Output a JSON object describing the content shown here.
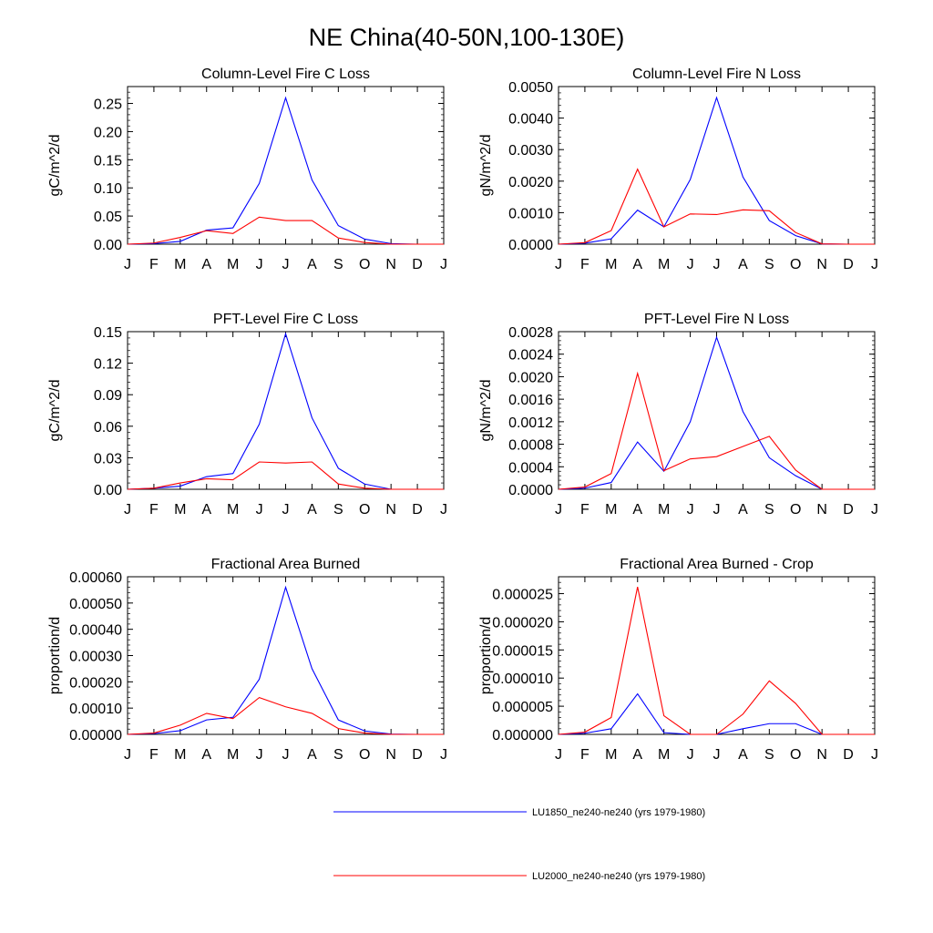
{
  "figure": {
    "title": "NE China(40-50N,100-130E)"
  },
  "legend": [
    {
      "name": "LU1850_ne240-ne240 (yrs 1979-1980)",
      "color": "#0000ff"
    },
    {
      "name": "LU2000_ne240-ne240 (yrs 1979-1980)",
      "color": "#ff0000"
    }
  ],
  "chart_data": [
    {
      "type": "line",
      "title": "Column-Level Fire C Loss",
      "ylabel": "gC/m^2/d",
      "xlabel": "",
      "categories": [
        "J",
        "F",
        "M",
        "A",
        "M",
        "J",
        "J",
        "A",
        "S",
        "O",
        "N",
        "D",
        "J"
      ],
      "ylim": [
        0,
        0.28
      ],
      "yticks": [
        "0.00",
        "0.05",
        "0.10",
        "0.15",
        "0.20",
        "0.25"
      ],
      "series": [
        {
          "name": "LU1850_ne240-ne240 (yrs 1979-1980)",
          "color": "#0000ff",
          "values": [
            0.0,
            0.001,
            0.005,
            0.025,
            0.029,
            0.108,
            0.26,
            0.114,
            0.033,
            0.009,
            0.001,
            0.0,
            0.0
          ]
        },
        {
          "name": "LU2000_ne240-ne240 (yrs 1979-1980)",
          "color": "#ff0000",
          "values": [
            0.0,
            0.002,
            0.012,
            0.024,
            0.019,
            0.048,
            0.042,
            0.042,
            0.011,
            0.003,
            0.0,
            0.0,
            0.0
          ]
        }
      ]
    },
    {
      "type": "line",
      "title": "Column-Level Fire N Loss",
      "ylabel": "gN/m^2/d",
      "xlabel": "",
      "categories": [
        "J",
        "F",
        "M",
        "A",
        "M",
        "J",
        "J",
        "A",
        "S",
        "O",
        "N",
        "D",
        "J"
      ],
      "ylim": [
        0,
        0.005
      ],
      "yticks": [
        "0.0000",
        "0.0010",
        "0.0020",
        "0.0030",
        "0.0040",
        "0.0050"
      ],
      "series": [
        {
          "name": "LU1850_ne240-ne240 (yrs 1979-1980)",
          "color": "#0000ff",
          "values": [
            0.0,
            3e-05,
            0.00017,
            0.00108,
            0.00055,
            0.00205,
            0.00465,
            0.00213,
            0.00075,
            0.00027,
            1e-05,
            0.0,
            0.0
          ]
        },
        {
          "name": "LU2000_ne240-ne240 (yrs 1979-1980)",
          "color": "#ff0000",
          "values": [
            0.0,
            5e-05,
            0.00043,
            0.00238,
            0.00055,
            0.00096,
            0.00094,
            0.00109,
            0.00106,
            0.00037,
            1e-05,
            0.0,
            0.0
          ]
        }
      ]
    },
    {
      "type": "line",
      "title": "PFT-Level Fire C Loss",
      "ylabel": "gC/m^2/d",
      "xlabel": "",
      "categories": [
        "J",
        "F",
        "M",
        "A",
        "M",
        "J",
        "J",
        "A",
        "S",
        "O",
        "N",
        "D",
        "J"
      ],
      "ylim": [
        0,
        0.15
      ],
      "yticks": [
        "0.00",
        "0.03",
        "0.06",
        "0.09",
        "0.12",
        "0.15"
      ],
      "series": [
        {
          "name": "LU1850_ne240-ne240 (yrs 1979-1980)",
          "color": "#0000ff",
          "values": [
            0.0,
            0.001,
            0.003,
            0.012,
            0.015,
            0.062,
            0.148,
            0.068,
            0.02,
            0.005,
            0.0,
            0.0,
            0.0
          ]
        },
        {
          "name": "LU2000_ne240-ne240 (yrs 1979-1980)",
          "color": "#ff0000",
          "values": [
            0.0,
            0.001,
            0.006,
            0.01,
            0.009,
            0.026,
            0.025,
            0.026,
            0.005,
            0.001,
            0.0,
            0.0,
            0.0
          ]
        }
      ]
    },
    {
      "type": "line",
      "title": "PFT-Level Fire N Loss",
      "ylabel": "gN/m^2/d",
      "xlabel": "",
      "categories": [
        "J",
        "F",
        "M",
        "A",
        "M",
        "J",
        "J",
        "A",
        "S",
        "O",
        "N",
        "D",
        "J"
      ],
      "ylim": [
        0,
        0.0028
      ],
      "yticks": [
        "0.0000",
        "0.0004",
        "0.0008",
        "0.0012",
        "0.0016",
        "0.0020",
        "0.0024",
        "0.0028"
      ],
      "series": [
        {
          "name": "LU1850_ne240-ne240 (yrs 1979-1980)",
          "color": "#0000ff",
          "values": [
            0.0,
            2e-05,
            0.00012,
            0.00084,
            0.00032,
            0.0012,
            0.0027,
            0.00138,
            0.00056,
            0.00024,
            0.0,
            0.0,
            0.0
          ]
        },
        {
          "name": "LU2000_ne240-ne240 (yrs 1979-1980)",
          "color": "#ff0000",
          "values": [
            0.0,
            4e-05,
            0.00028,
            0.00206,
            0.00033,
            0.00054,
            0.00058,
            0.00076,
            0.00094,
            0.00034,
            0.0,
            0.0,
            0.0
          ]
        }
      ]
    },
    {
      "type": "line",
      "title": "Fractional Area Burned",
      "ylabel": "proportion/d",
      "xlabel": "",
      "categories": [
        "J",
        "F",
        "M",
        "A",
        "M",
        "J",
        "J",
        "A",
        "S",
        "O",
        "N",
        "D",
        "J"
      ],
      "ylim": [
        0,
        0.0006
      ],
      "yticks": [
        "0.00000",
        "0.00010",
        "0.00020",
        "0.00030",
        "0.00040",
        "0.00050",
        "0.00060"
      ],
      "series": [
        {
          "name": "LU1850_ne240-ne240 (yrs 1979-1980)",
          "color": "#0000ff",
          "values": [
            0.0,
            3e-06,
            1.4e-05,
            5.5e-05,
            6.5e-05,
            0.00021,
            0.00056,
            0.00025,
            5.5e-05,
            1.3e-05,
            1e-06,
            0.0,
            0.0
          ]
        },
        {
          "name": "LU2000_ne240-ne240 (yrs 1979-1980)",
          "color": "#ff0000",
          "values": [
            0.0,
            5e-06,
            3.5e-05,
            8e-05,
            6e-05,
            0.00014,
            0.000105,
            8e-05,
            2.2e-05,
            5e-06,
            0.0,
            0.0,
            0.0
          ]
        }
      ]
    },
    {
      "type": "line",
      "title": "Fractional Area Burned - Crop",
      "ylabel": "proportion/d",
      "xlabel": "",
      "categories": [
        "J",
        "F",
        "M",
        "A",
        "M",
        "J",
        "J",
        "A",
        "S",
        "O",
        "N",
        "D",
        "J"
      ],
      "ylim": [
        0,
        2.8e-05
      ],
      "yticks": [
        "0.000000",
        "0.000005",
        "0.000010",
        "0.000015",
        "0.000020",
        "0.000025"
      ],
      "series": [
        {
          "name": "LU1850_ne240-ne240 (yrs 1979-1980)",
          "color": "#0000ff",
          "values": [
            0.0,
            2e-07,
            1e-06,
            7.2e-06,
            3e-07,
            0.0,
            0.0,
            1e-06,
            1.9e-06,
            1.9e-06,
            0.0,
            0.0,
            0.0
          ]
        },
        {
          "name": "LU2000_ne240-ne240 (yrs 1979-1980)",
          "color": "#ff0000",
          "values": [
            0.0,
            4e-07,
            3e-06,
            2.62e-05,
            3.3e-06,
            0.0,
            0.0,
            3.6e-06,
            9.5e-06,
            5.5e-06,
            0.0,
            0.0,
            0.0
          ]
        }
      ]
    }
  ]
}
